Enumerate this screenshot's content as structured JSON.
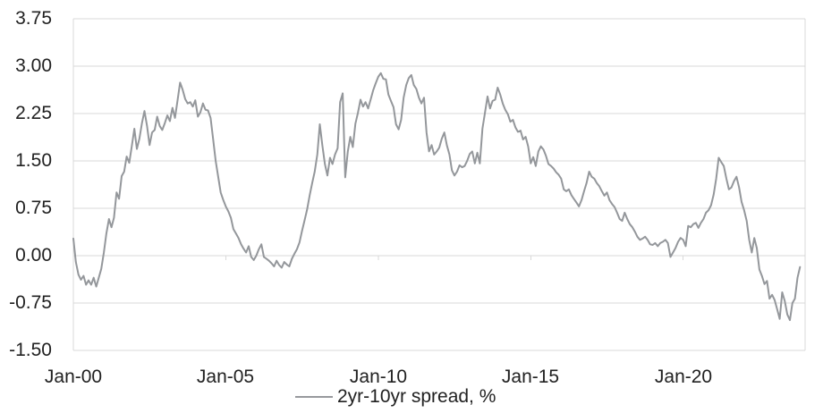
{
  "chart_data": {
    "type": "line",
    "title": "",
    "x_axis": {
      "tick_labels": [
        "Jan-00",
        "Jan-05",
        "Jan-10",
        "Jan-15",
        "Jan-20"
      ],
      "tick_years": [
        2000,
        2005,
        2010,
        2015,
        2020
      ],
      "range_years": [
        2000,
        2024
      ]
    },
    "y_axis": {
      "tick_labels": [
        "3.75",
        "3.00",
        "2.25",
        "1.50",
        "0.75",
        "0.00",
        "-0.75",
        "-1.50"
      ],
      "min": -1.5,
      "max": 3.75,
      "step": 0.75
    },
    "grid": {
      "horizontal": true,
      "vertical": false,
      "color": "#d9d9d9"
    },
    "legend": {
      "position": "bottom",
      "entries": [
        "2yr-10yr spread, %"
      ]
    },
    "series": [
      {
        "name": "2yr-10yr spread, %",
        "color": "#94979b",
        "start": "2000-01",
        "frequency": "monthly",
        "unit": "%",
        "values": [
          0.27,
          -0.1,
          -0.3,
          -0.38,
          -0.32,
          -0.46,
          -0.39,
          -0.46,
          -0.35,
          -0.49,
          -0.35,
          -0.21,
          0.05,
          0.35,
          0.58,
          0.45,
          0.6,
          1.0,
          0.9,
          1.26,
          1.33,
          1.57,
          1.47,
          1.73,
          2.01,
          1.69,
          1.85,
          2.1,
          2.29,
          2.05,
          1.75,
          1.95,
          1.99,
          2.2,
          2.05,
          1.99,
          2.1,
          2.22,
          2.13,
          2.34,
          2.18,
          2.46,
          2.74,
          2.63,
          2.48,
          2.41,
          2.43,
          2.36,
          2.46,
          2.2,
          2.27,
          2.41,
          2.31,
          2.3,
          2.18,
          1.85,
          1.5,
          1.25,
          1.0,
          0.88,
          0.78,
          0.7,
          0.6,
          0.42,
          0.35,
          0.28,
          0.18,
          0.11,
          0.05,
          0.15,
          -0.02,
          -0.07,
          0.0,
          0.1,
          0.18,
          -0.02,
          -0.05,
          -0.08,
          -0.12,
          -0.17,
          -0.08,
          -0.15,
          -0.19,
          -0.1,
          -0.14,
          -0.17,
          -0.05,
          0.03,
          0.1,
          0.21,
          0.39,
          0.56,
          0.73,
          0.95,
          1.15,
          1.33,
          1.6,
          2.08,
          1.75,
          1.45,
          1.27,
          1.55,
          1.45,
          1.6,
          1.7,
          2.43,
          2.57,
          1.24,
          1.65,
          1.88,
          1.72,
          2.09,
          2.26,
          2.47,
          2.36,
          2.43,
          2.33,
          2.47,
          2.62,
          2.73,
          2.83,
          2.89,
          2.8,
          2.79,
          2.55,
          2.45,
          2.35,
          2.08,
          2.0,
          2.15,
          2.5,
          2.7,
          2.81,
          2.86,
          2.7,
          2.64,
          2.5,
          2.41,
          2.5,
          1.95,
          1.65,
          1.75,
          1.6,
          1.65,
          1.71,
          1.85,
          1.95,
          1.75,
          1.6,
          1.35,
          1.27,
          1.33,
          1.43,
          1.4,
          1.42,
          1.5,
          1.61,
          1.65,
          1.46,
          1.63,
          1.46,
          2.01,
          2.26,
          2.52,
          2.33,
          2.45,
          2.47,
          2.66,
          2.55,
          2.41,
          2.31,
          2.24,
          2.12,
          2.15,
          2.03,
          1.96,
          1.98,
          1.84,
          1.88,
          1.73,
          1.46,
          1.56,
          1.42,
          1.65,
          1.73,
          1.68,
          1.58,
          1.45,
          1.42,
          1.38,
          1.32,
          1.28,
          1.22,
          1.05,
          1.02,
          1.05,
          0.96,
          0.9,
          0.84,
          0.78,
          0.88,
          1.02,
          1.15,
          1.33,
          1.25,
          1.22,
          1.15,
          1.1,
          1.02,
          0.95,
          1.0,
          0.88,
          0.82,
          0.77,
          0.68,
          0.58,
          0.55,
          0.68,
          0.58,
          0.5,
          0.45,
          0.38,
          0.3,
          0.25,
          0.27,
          0.3,
          0.25,
          0.18,
          0.17,
          0.2,
          0.15,
          0.2,
          0.22,
          0.25,
          0.2,
          -0.02,
          0.05,
          0.12,
          0.22,
          0.28,
          0.25,
          0.15,
          0.47,
          0.45,
          0.5,
          0.52,
          0.44,
          0.52,
          0.58,
          0.68,
          0.72,
          0.8,
          0.97,
          1.22,
          1.55,
          1.48,
          1.42,
          1.22,
          1.05,
          1.08,
          1.18,
          1.25,
          1.08,
          0.85,
          0.72,
          0.55,
          0.25,
          0.05,
          0.28,
          0.12,
          -0.22,
          -0.32,
          -0.45,
          -0.4,
          -0.68,
          -0.62,
          -0.7,
          -0.85,
          -1.0,
          -0.58,
          -0.72,
          -0.93,
          -1.02,
          -0.75,
          -0.68,
          -0.35,
          -0.18
        ]
      }
    ]
  }
}
